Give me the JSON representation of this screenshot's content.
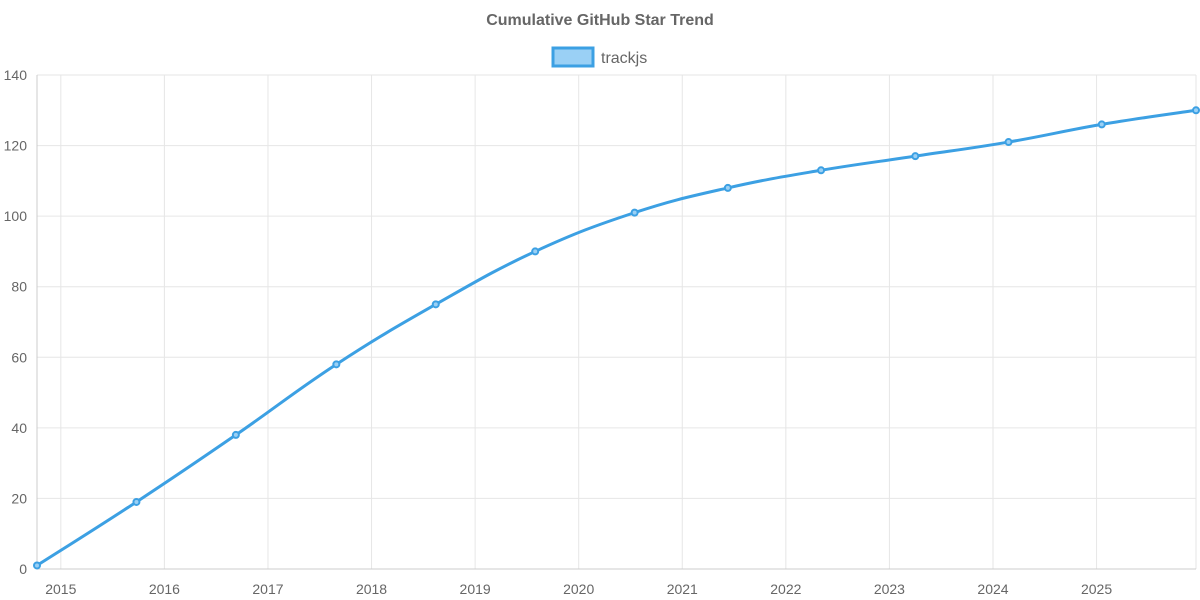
{
  "chart_data": {
    "type": "line",
    "title": "Cumulative GitHub Star Trend",
    "xlabel": "",
    "ylabel": "",
    "xlim": [
      2014.77,
      2025.96
    ],
    "ylim": [
      0,
      140
    ],
    "yticks": [
      0,
      20,
      40,
      60,
      80,
      100,
      120,
      140
    ],
    "xticks": [
      2015,
      2016,
      2017,
      2018,
      2019,
      2020,
      2021,
      2022,
      2023,
      2024,
      2025
    ],
    "xtick_labels": [
      "2015",
      "2016",
      "2017",
      "2018",
      "2019",
      "2020",
      "2021",
      "2022",
      "2023",
      "2024",
      "2025"
    ],
    "grid": true,
    "legend_position": "top-center",
    "series": [
      {
        "name": "trackjs",
        "color": "#3ca0e3",
        "fill": "#9ad0f5",
        "x": [
          2014.77,
          2015.73,
          2016.69,
          2017.66,
          2018.62,
          2019.58,
          2020.54,
          2021.44,
          2022.34,
          2023.25,
          2024.15,
          2025.05,
          2025.96
        ],
        "values": [
          1,
          19,
          38,
          58,
          75,
          90,
          101,
          108,
          113,
          117,
          121,
          126,
          130
        ]
      }
    ]
  }
}
